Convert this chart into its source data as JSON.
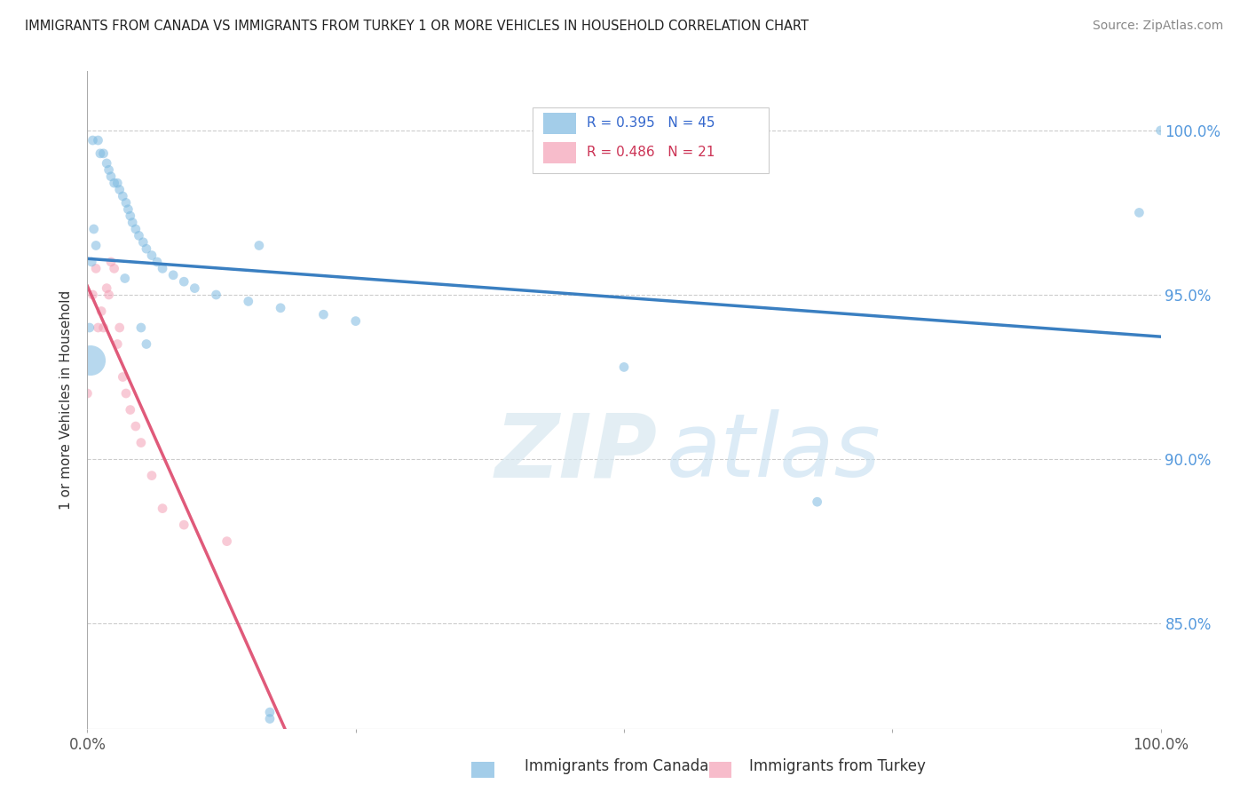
{
  "title": "IMMIGRANTS FROM CANADA VS IMMIGRANTS FROM TURKEY 1 OR MORE VEHICLES IN HOUSEHOLD CORRELATION CHART",
  "source": "Source: ZipAtlas.com",
  "ylabel": "1 or more Vehicles in Household",
  "watermark_zip": "ZIP",
  "watermark_atlas": "atlas",
  "canada_R": 0.395,
  "canada_N": 45,
  "turkey_R": 0.486,
  "turkey_N": 21,
  "canada_color": "#7cb9e0",
  "turkey_color": "#f4a0b5",
  "canada_line_color": "#3a7fc1",
  "turkey_line_color": "#e05a7a",
  "ytick_labels": [
    "85.0%",
    "90.0%",
    "95.0%",
    "100.0%"
  ],
  "ytick_values": [
    0.85,
    0.9,
    0.95,
    1.0
  ],
  "xlim": [
    0.0,
    1.0
  ],
  "ylim": [
    0.818,
    1.018
  ],
  "canada_x": [
    0.005,
    0.01,
    0.012,
    0.015,
    0.018,
    0.02,
    0.022,
    0.025,
    0.028,
    0.03,
    0.033,
    0.036,
    0.038,
    0.04,
    0.042,
    0.045,
    0.048,
    0.052,
    0.055,
    0.06,
    0.065,
    0.07,
    0.08,
    0.09,
    0.1,
    0.12,
    0.15,
    0.18,
    0.22,
    0.25,
    0.002,
    0.004,
    0.006,
    0.008,
    0.035,
    0.05,
    0.055,
    0.16,
    0.17,
    0.17,
    0.5,
    0.68,
    0.98,
    1.0,
    0.003
  ],
  "canada_y": [
    0.997,
    0.997,
    0.993,
    0.993,
    0.99,
    0.988,
    0.986,
    0.984,
    0.984,
    0.982,
    0.98,
    0.978,
    0.976,
    0.974,
    0.972,
    0.97,
    0.968,
    0.966,
    0.964,
    0.962,
    0.96,
    0.958,
    0.956,
    0.954,
    0.952,
    0.95,
    0.948,
    0.946,
    0.944,
    0.942,
    0.94,
    0.96,
    0.97,
    0.965,
    0.955,
    0.94,
    0.935,
    0.965,
    0.821,
    0.823,
    0.928,
    0.887,
    0.975,
    1.0,
    0.93
  ],
  "canada_size": [
    60,
    60,
    60,
    60,
    60,
    60,
    60,
    60,
    60,
    60,
    60,
    60,
    60,
    60,
    60,
    60,
    60,
    60,
    60,
    60,
    60,
    60,
    60,
    60,
    60,
    60,
    60,
    60,
    60,
    60,
    60,
    60,
    60,
    60,
    60,
    60,
    60,
    60,
    60,
    60,
    60,
    60,
    60,
    60,
    600
  ],
  "turkey_x": [
    0.0,
    0.005,
    0.008,
    0.01,
    0.013,
    0.015,
    0.018,
    0.02,
    0.022,
    0.025,
    0.028,
    0.03,
    0.033,
    0.036,
    0.04,
    0.045,
    0.05,
    0.06,
    0.07,
    0.09,
    0.13
  ],
  "turkey_y": [
    0.92,
    0.95,
    0.958,
    0.94,
    0.945,
    0.94,
    0.952,
    0.95,
    0.96,
    0.958,
    0.935,
    0.94,
    0.925,
    0.92,
    0.915,
    0.91,
    0.905,
    0.895,
    0.885,
    0.88,
    0.875
  ],
  "turkey_size": [
    60,
    60,
    60,
    60,
    60,
    60,
    60,
    60,
    60,
    60,
    60,
    60,
    60,
    60,
    60,
    60,
    60,
    60,
    60,
    60,
    60
  ]
}
